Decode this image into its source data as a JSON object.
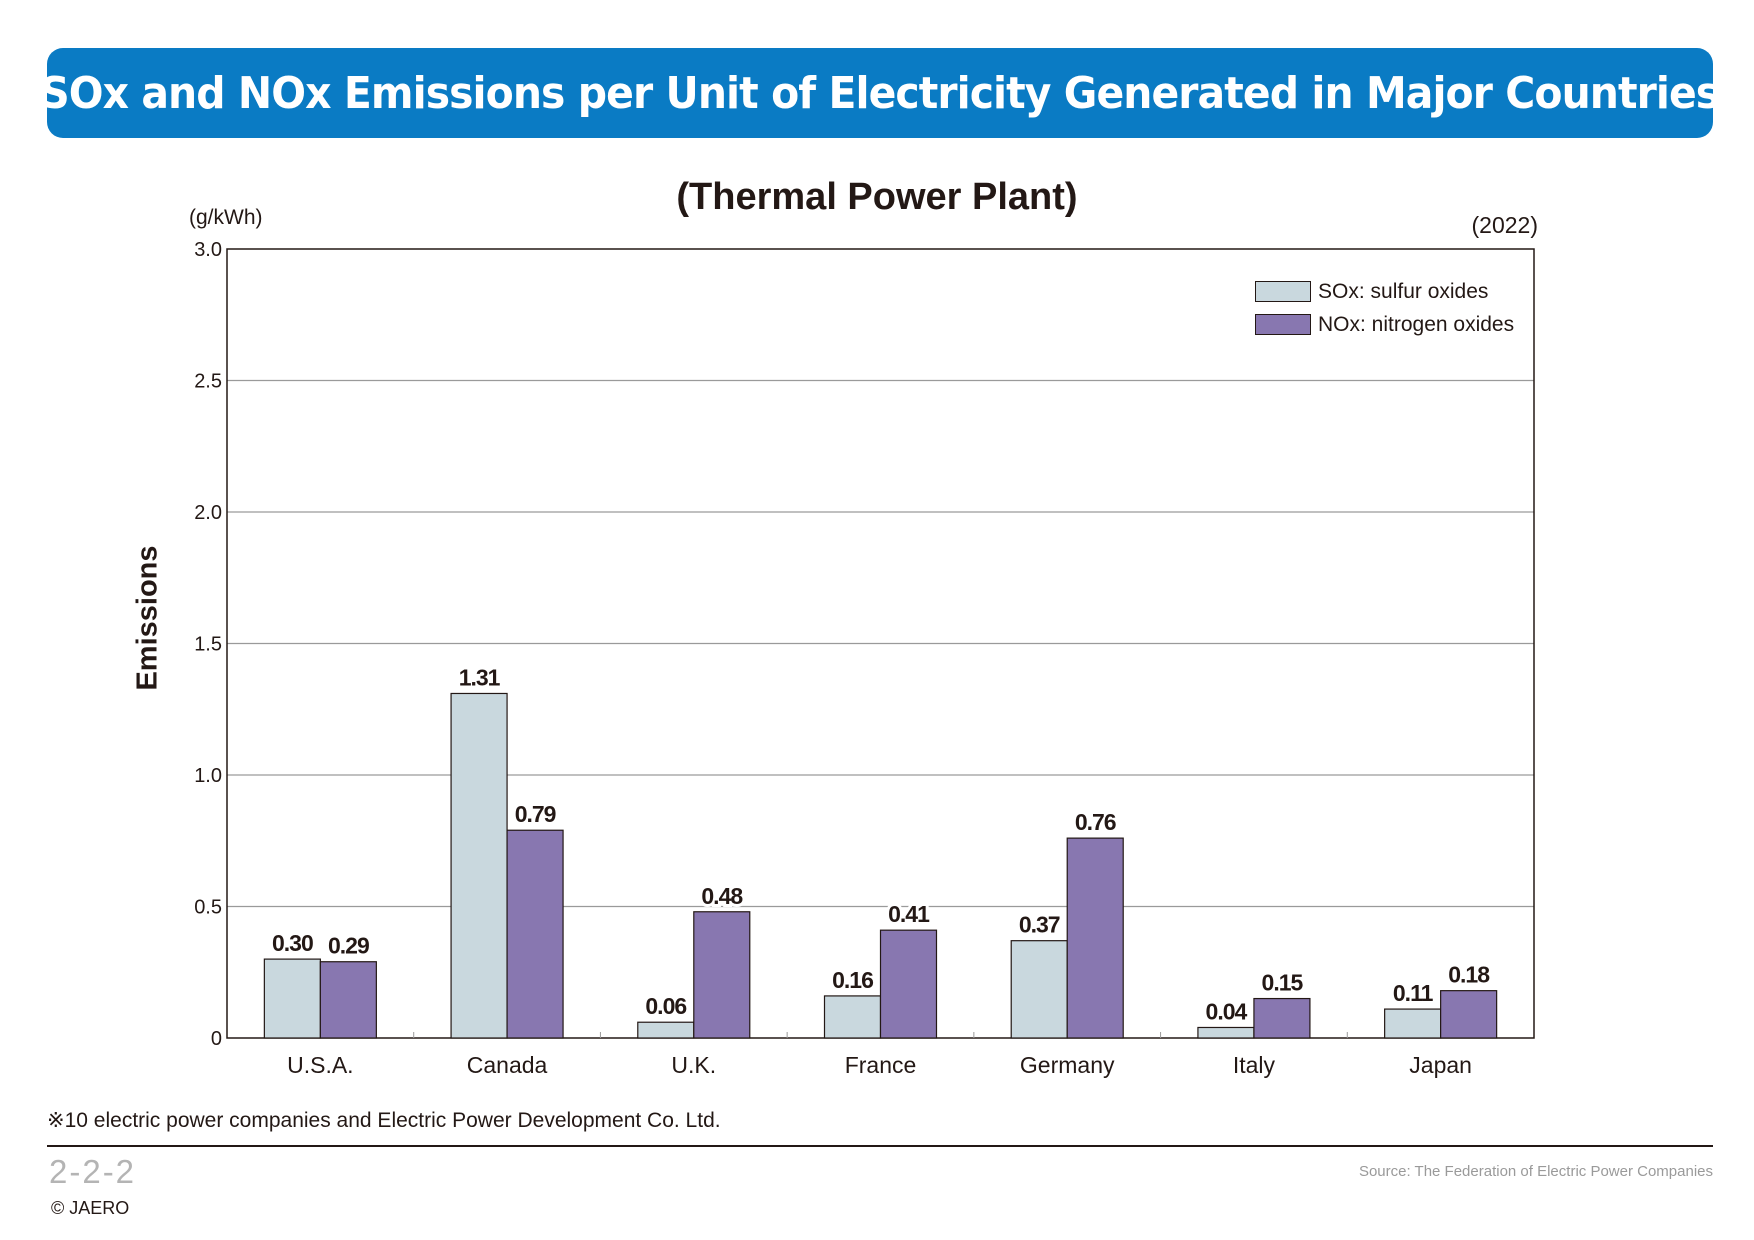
{
  "banner": {
    "title": "SOx and NOx Emissions per Unit of Electricity Generated in Major Countries"
  },
  "chart_data": {
    "type": "bar",
    "title": "(Thermal Power Plant)",
    "unit": "(g/kWh)",
    "year": "(2022)",
    "ylabel": "Emissions",
    "xlabel": "",
    "ylim": [
      0,
      3.0
    ],
    "yticks": [
      {
        "value": 0,
        "label": "0"
      },
      {
        "value": 0.5,
        "label": "0.5"
      },
      {
        "value": 1.0,
        "label": "1.0"
      },
      {
        "value": 1.5,
        "label": "1.5"
      },
      {
        "value": 2.0,
        "label": "2.0"
      },
      {
        "value": 2.5,
        "label": "2.5"
      },
      {
        "value": 3.0,
        "label": "3.0"
      }
    ],
    "grid": true,
    "legend_position": "top-right",
    "categories": [
      "U.S.A.",
      "Canada",
      "U.K.",
      "France",
      "Germany",
      "Italy",
      "Japan"
    ],
    "series": [
      {
        "name": "SOx: sulfur oxides",
        "color": "#c9d8de",
        "values": [
          0.3,
          1.31,
          0.06,
          0.16,
          0.37,
          0.04,
          0.11
        ],
        "labels": [
          "0.30",
          "1.31",
          "0.06",
          "0.16",
          "0.37",
          "0.04",
          "0.11"
        ]
      },
      {
        "name": "NOx: nitrogen oxides",
        "color": "#8877b0",
        "values": [
          0.29,
          0.79,
          0.48,
          0.41,
          0.76,
          0.15,
          0.18
        ],
        "labels": [
          "0.29",
          "0.79",
          "0.48",
          "0.41",
          "0.76",
          "0.15",
          "0.18"
        ]
      }
    ]
  },
  "footnote": "※10 electric power companies and Electric Power Development Co. Ltd.",
  "page_number": "2-2-2",
  "copyright": "© JAERO",
  "source": "Source: The Federation of Electric Power Companies",
  "colors": {
    "banner": "#0a7bc4",
    "sox": "#c9d8de",
    "nox": "#8877b0",
    "text": "#231815"
  }
}
